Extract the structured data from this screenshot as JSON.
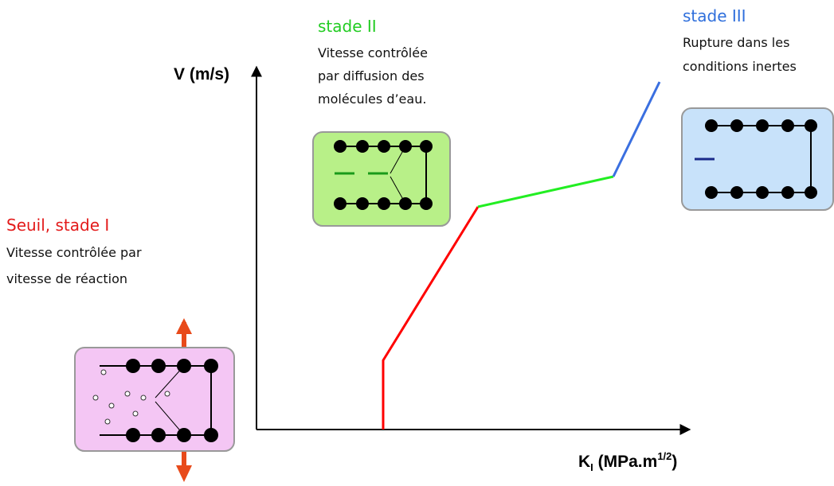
{
  "axes": {
    "y_label": "V (m/s)",
    "x_label": {
      "symbol": "K",
      "subscript": "I",
      "unit": " (MPa.m",
      "exponent": "1/2",
      "close": ")"
    }
  },
  "stages": [
    {
      "title": "Seuil, stade I",
      "lines": [
        "Vitesse contrôlée par",
        "vitesse de réaction"
      ]
    },
    {
      "title": "stade II",
      "lines": [
        "Vitesse contrôlée",
        "par diffusion des",
        "molécules d’eau."
      ]
    },
    {
      "title": "stade III",
      "lines": [
        "Rupture dans les",
        "conditions inertes"
      ]
    }
  ]
}
